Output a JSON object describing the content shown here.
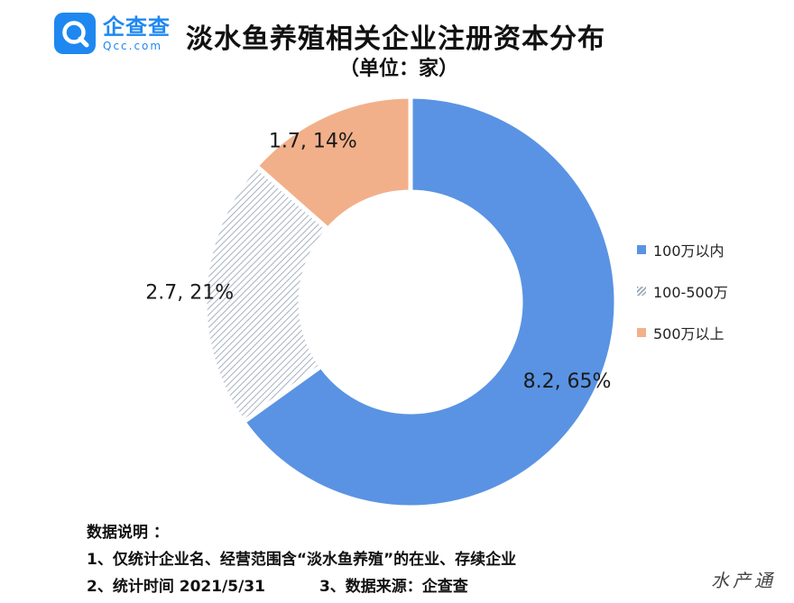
{
  "header": {
    "logo_text": "企查查",
    "logo_sub": "Qcc.com",
    "title": "淡水鱼养殖相关企业注册资本分布",
    "subtitle": "（单位：家）"
  },
  "chart_data": {
    "type": "pie",
    "donut": true,
    "categories": [
      "100万以内",
      "100-500万",
      "500万以上"
    ],
    "values": [
      8.2,
      2.7,
      1.7
    ],
    "percent": [
      65,
      21,
      14
    ],
    "data_labels": [
      "8.2, 65%",
      "2.7, 21%",
      "1.7, 14%"
    ],
    "colors": [
      "#5a93e3",
      "hatch",
      "#f2b08a"
    ],
    "legend_position": "right"
  },
  "notes": {
    "heading": "数据说明 ：",
    "line1": "1、仅统计企业名、经营范围含“淡水鱼养殖”的在业、存续企业",
    "line2a": "2、统计时间  2021/5/31",
    "line2b": "3、数据来源：企查查"
  },
  "watermark": "水产通"
}
